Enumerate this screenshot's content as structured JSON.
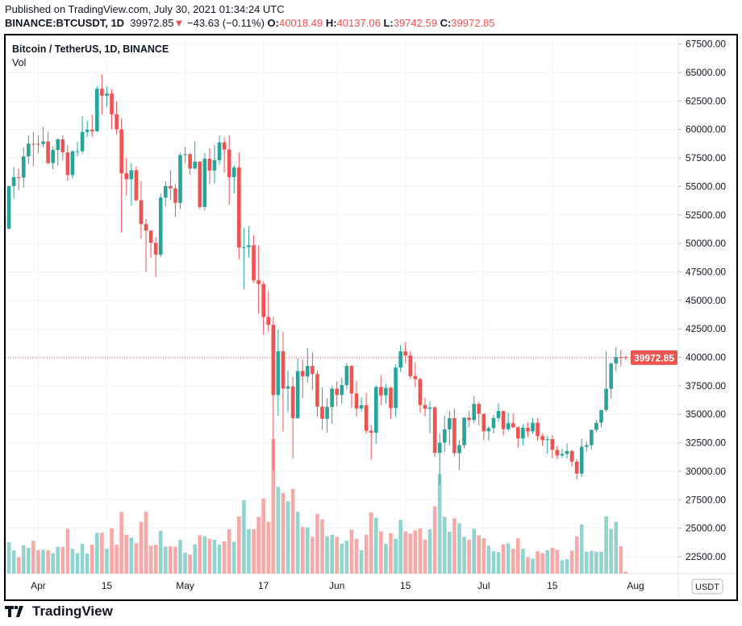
{
  "header": {
    "published": "Published on TradingView.com, July 30, 2021 01:34:24 UTC",
    "symbol": "BINANCE:BTCUSDT, 1D",
    "last": "39972.85",
    "change": "−43.63 (−0.11%)",
    "o_label": "O:",
    "o": "40018.49",
    "h_label": "H:",
    "h": "40137.06",
    "l_label": "L:",
    "l": "39742.59",
    "c_label": "C:",
    "c": "39972.85"
  },
  "legend": {
    "title": "Bitcoin / TetherUS, 1D, BINANCE",
    "vol": "Vol"
  },
  "currency_badge": "USDT",
  "last_price_label": "39972.85",
  "brand": "TradingView",
  "colors": {
    "up": "#26a69a",
    "down": "#ef5350",
    "vol_up": "#8fd4ce",
    "vol_down": "#f7a9a7"
  },
  "chart_data": {
    "type": "candlestick",
    "title": "Bitcoin / TetherUS, 1D, BINANCE",
    "x_start": "2021-03-25",
    "x_end": "2021-07-30",
    "x_ticks": [
      {
        "date": "2021-04-01",
        "label": "Apr"
      },
      {
        "date": "2021-04-15",
        "label": "15"
      },
      {
        "date": "2021-05-01",
        "label": "May"
      },
      {
        "date": "2021-05-17",
        "label": "17"
      },
      {
        "date": "2021-06-01",
        "label": "Jun"
      },
      {
        "date": "2021-06-15",
        "label": "15"
      },
      {
        "date": "2021-07-01",
        "label": "Jul"
      },
      {
        "date": "2021-07-15",
        "label": "15"
      },
      {
        "date": "2021-08-01",
        "label": "Aug"
      }
    ],
    "y_ticks": [
      "67500.00",
      "65000.00",
      "62500.00",
      "60000.00",
      "57500.00",
      "55000.00",
      "52500.00",
      "50000.00",
      "47500.00",
      "45000.00",
      "42500.00",
      "40000.00",
      "37500.00",
      "35000.00",
      "32500.00",
      "30000.00",
      "27500.00",
      "25000.00",
      "22500.00"
    ],
    "ylim": [
      20600,
      67900
    ],
    "grid": true,
    "volume_unit": "thousand BTC (approx.)",
    "candles_ohlcv": [
      [
        52303,
        53230,
        50427,
        51293,
        80
      ],
      [
        51293,
        55073,
        51200,
        55025,
        63
      ],
      [
        55025,
        56700,
        53950,
        55817,
        47
      ],
      [
        55817,
        56559,
        54691,
        55777,
        33
      ],
      [
        55777,
        58400,
        54900,
        57635,
        57
      ],
      [
        57635,
        59468,
        57000,
        58746,
        52
      ],
      [
        58746,
        59800,
        56769,
        58740,
        66
      ],
      [
        58740,
        59490,
        57935,
        58720,
        47
      ],
      [
        58720,
        60200,
        58428,
        58950,
        48
      ],
      [
        58950,
        59791,
        56955,
        57052,
        47
      ],
      [
        57052,
        58493,
        56500,
        58202,
        41
      ],
      [
        58202,
        59251,
        56800,
        59130,
        54
      ],
      [
        59130,
        59474,
        57333,
        57992,
        54
      ],
      [
        57992,
        58650,
        55473,
        56000,
        90
      ],
      [
        56000,
        58153,
        55700,
        58088,
        50
      ],
      [
        58088,
        58894,
        57654,
        58092,
        41
      ],
      [
        58092,
        61200,
        57900,
        59778,
        60
      ],
      [
        59778,
        60800,
        59360,
        59985,
        40
      ],
      [
        59985,
        61300,
        59350,
        59838,
        58
      ],
      [
        59838,
        63800,
        59800,
        63576,
        82
      ],
      [
        63576,
        64854,
        61301,
        62960,
        82
      ],
      [
        62960,
        63800,
        62000,
        63159,
        50
      ],
      [
        63159,
        63520,
        60000,
        61334,
        91
      ],
      [
        61334,
        62500,
        59580,
        60006,
        58
      ],
      [
        60006,
        61000,
        50931,
        56150,
        124
      ],
      [
        56150,
        57526,
        54221,
        55633,
        78
      ],
      [
        55633,
        57076,
        53329,
        56425,
        72
      ],
      [
        56425,
        56757,
        53695,
        53787,
        61
      ],
      [
        53787,
        55450,
        50400,
        51690,
        104
      ],
      [
        51690,
        52131,
        47500,
        51125,
        124
      ],
      [
        51125,
        51166,
        48733,
        50047,
        56
      ],
      [
        50047,
        50567,
        47044,
        49004,
        58
      ],
      [
        49004,
        54356,
        48800,
        54021,
        86
      ],
      [
        54021,
        55460,
        53222,
        55033,
        54
      ],
      [
        55033,
        56428,
        53813,
        54824,
        55
      ],
      [
        54824,
        55200,
        52330,
        53555,
        54
      ],
      [
        53555,
        57963,
        53013,
        57750,
        68
      ],
      [
        57750,
        58458,
        57052,
        57828,
        42
      ],
      [
        57828,
        57950,
        56035,
        56578,
        38
      ],
      [
        56578,
        58981,
        56435,
        57170,
        59
      ],
      [
        57170,
        57200,
        53000,
        53200,
        77
      ],
      [
        53200,
        57911,
        52900,
        57436,
        75
      ],
      [
        57436,
        58360,
        55200,
        56393,
        70
      ],
      [
        56393,
        58650,
        55241,
        57314,
        68
      ],
      [
        57314,
        59500,
        56900,
        58862,
        58
      ],
      [
        58862,
        59300,
        56235,
        58240,
        65
      ],
      [
        58240,
        59500,
        53400,
        55816,
        89
      ],
      [
        55816,
        56862,
        54370,
        56670,
        64
      ],
      [
        56670,
        58000,
        48600,
        49631,
        115
      ],
      [
        49631,
        51367,
        46000,
        49670,
        147
      ],
      [
        49670,
        51483,
        48800,
        49841,
        89
      ],
      [
        49841,
        50700,
        46555,
        46762,
        89
      ],
      [
        46762,
        49800,
        43825,
        46431,
        114
      ],
      [
        46431,
        46643,
        42001,
        43538,
        151
      ],
      [
        43538,
        45800,
        42250,
        42849,
        104
      ],
      [
        42849,
        43546,
        30000,
        36690,
        270
      ],
      [
        36690,
        42451,
        34850,
        40526,
        174
      ],
      [
        40526,
        42250,
        33488,
        37252,
        162
      ],
      [
        37252,
        38829,
        35200,
        37449,
        145
      ],
      [
        37449,
        38270,
        31111,
        34655,
        170
      ],
      [
        34655,
        39920,
        34600,
        38796,
        124
      ],
      [
        38796,
        39791,
        36420,
        38324,
        94
      ],
      [
        38324,
        40841,
        37800,
        39241,
        93
      ],
      [
        39241,
        40411,
        37134,
        38529,
        74
      ],
      [
        38529,
        38856,
        34779,
        35663,
        120
      ],
      [
        35663,
        37338,
        33632,
        34605,
        109
      ],
      [
        34605,
        36400,
        33379,
        35641,
        75
      ],
      [
        35641,
        37499,
        34153,
        37253,
        78
      ],
      [
        37253,
        37894,
        35666,
        36693,
        74
      ],
      [
        36693,
        38225,
        35920,
        37568,
        60
      ],
      [
        37568,
        39476,
        37170,
        39246,
        66
      ],
      [
        39246,
        39289,
        35555,
        36829,
        88
      ],
      [
        36829,
        37925,
        34800,
        35513,
        70
      ],
      [
        35513,
        36480,
        35255,
        35796,
        47
      ],
      [
        35796,
        36900,
        33300,
        33552,
        78
      ],
      [
        33552,
        34069,
        31000,
        33380,
        123
      ],
      [
        33380,
        37534,
        32396,
        37389,
        112
      ],
      [
        37389,
        38400,
        35800,
        36662,
        85
      ],
      [
        36662,
        37690,
        35944,
        37323,
        60
      ],
      [
        37323,
        37451,
        34600,
        35544,
        81
      ],
      [
        35544,
        39380,
        34757,
        39097,
        70
      ],
      [
        39097,
        41064,
        38730,
        40519,
        108
      ],
      [
        40519,
        41330,
        39506,
        40162,
        85
      ],
      [
        40162,
        40527,
        38116,
        38342,
        80
      ],
      [
        38342,
        39559,
        37365,
        38092,
        87
      ],
      [
        38092,
        38202,
        35129,
        35819,
        91
      ],
      [
        35819,
        36457,
        34803,
        35483,
        68
      ],
      [
        35483,
        36137,
        33336,
        35600,
        89
      ],
      [
        35600,
        35750,
        31251,
        31608,
        135
      ],
      [
        31608,
        33298,
        28805,
        32509,
        200
      ],
      [
        32509,
        34881,
        31683,
        33678,
        114
      ],
      [
        33678,
        35298,
        32286,
        34663,
        84
      ],
      [
        34663,
        35500,
        31275,
        31584,
        111
      ],
      [
        31584,
        32730,
        30151,
        32283,
        101
      ],
      [
        32283,
        34749,
        32000,
        34700,
        74
      ],
      [
        34700,
        35297,
        33862,
        34494,
        68
      ],
      [
        34494,
        36600,
        34225,
        35911,
        90
      ],
      [
        35911,
        36100,
        34017,
        35045,
        77
      ],
      [
        35045,
        35057,
        32711,
        33504,
        71
      ],
      [
        33504,
        33977,
        32699,
        33786,
        56
      ],
      [
        33786,
        34945,
        33316,
        34669,
        45
      ],
      [
        34669,
        35967,
        34357,
        35287,
        43
      ],
      [
        35287,
        35293,
        33125,
        33690,
        59
      ],
      [
        33690,
        35118,
        33532,
        34220,
        61
      ],
      [
        34220,
        35059,
        33777,
        33863,
        50
      ],
      [
        33863,
        33929,
        32077,
        32877,
        71
      ],
      [
        32877,
        34100,
        32261,
        33815,
        50
      ],
      [
        33815,
        34262,
        33004,
        33502,
        33
      ],
      [
        33502,
        34666,
        33306,
        34259,
        30
      ],
      [
        34259,
        34679,
        32658,
        33087,
        45
      ],
      [
        33087,
        33340,
        32203,
        32729,
        41
      ],
      [
        32729,
        33114,
        31550,
        32820,
        47
      ],
      [
        32820,
        33185,
        31133,
        31880,
        52
      ],
      [
        31880,
        32249,
        31020,
        31383,
        48
      ],
      [
        31383,
        31955,
        31164,
        31521,
        27
      ],
      [
        31521,
        32435,
        31108,
        31778,
        29
      ],
      [
        31778,
        31899,
        30407,
        30839,
        46
      ],
      [
        30839,
        31063,
        29278,
        29790,
        75
      ],
      [
        29790,
        32858,
        29482,
        32144,
        99
      ],
      [
        32144,
        32591,
        31708,
        32287,
        44
      ],
      [
        32287,
        33650,
        31924,
        33634,
        46
      ],
      [
        33634,
        34500,
        33401,
        34258,
        44
      ],
      [
        34258,
        35398,
        33851,
        35381,
        44
      ],
      [
        35381,
        40550,
        35205,
        37237,
        115
      ],
      [
        37237,
        39542,
        36383,
        39457,
        90
      ],
      [
        39457,
        40900,
        38772,
        40019,
        104
      ],
      [
        40019,
        40640,
        39200,
        40016,
        55
      ],
      [
        40018.49,
        40137.06,
        39742.59,
        39972.85,
        4
      ]
    ]
  }
}
